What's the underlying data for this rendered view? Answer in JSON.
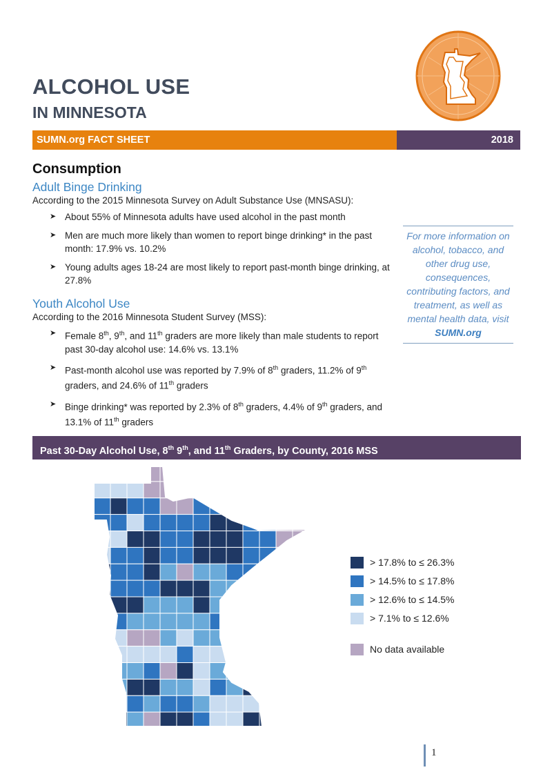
{
  "header": {
    "title_line1": "ALCOHOL USE",
    "title_line2": "IN MINNESOTA",
    "banner_left": "SUMN.org FACT SHEET",
    "banner_right": "2018"
  },
  "colors": {
    "orange": "#e7820e",
    "purple": "#574166",
    "blue_heading": "#3d87c4"
  },
  "section": {
    "heading": "Consumption",
    "adult": {
      "title": "Adult Binge Drinking",
      "intro": "According to the 2015 Minnesota Survey on Adult Substance Use (MNSASU):",
      "bullets": [
        [
          "About 55% of Minnesota adults have used alcohol in the past month"
        ],
        [
          "Men are much more likely than women to report binge drinking* in the past month: 17.9% vs. 10.2%"
        ],
        [
          "Young adults ages 18-24 are most likely to report past-month binge drinking, at 27.8%"
        ]
      ]
    },
    "youth": {
      "title": "Youth Alcohol Use",
      "intro": "According to the 2016 Minnesota Student Survey (MSS):",
      "bullets": [
        [
          "Female 8",
          "th",
          ", 9",
          "th",
          ", and 11",
          "th",
          " graders are more likely than male students to report past 30-day alcohol use: 14.6% vs. 13.1%"
        ],
        [
          "Past-month alcohol use was reported by 7.9% of 8",
          "th",
          " graders, 11.2% of 9",
          "th",
          " graders, and 24.6% of 11",
          "th",
          " graders"
        ],
        [
          "Binge drinking* was reported by 2.3% of 8",
          "th",
          " graders, 4.4% of 9",
          "th",
          " graders, and 13.1% of 11",
          "th",
          " graders"
        ]
      ]
    }
  },
  "sidebar": {
    "text": "For more information on alcohol, tobacco, and other drug use, consequences, contributing factors, and treatment, as well as mental health data, visit ",
    "link": "SUMN.org"
  },
  "map_section": {
    "title_parts": [
      "Past 30-Day Alcohol Use, 8",
      "th",
      " 9",
      "th",
      ", and 11",
      "th",
      " Graders, by County, 2016 MSS"
    ],
    "legend": [
      {
        "label": "> 17.8% to ≤ 26.3%",
        "color": "#1f3864"
      },
      {
        "label": "> 14.5% to ≤ 17.8%",
        "color": "#2f75c0"
      },
      {
        "label": "> 12.6% to ≤ 14.5%",
        "color": "#6aaad9"
      },
      {
        "label": "> 7.1% to ≤ 12.6%",
        "color": "#c9dcf0"
      },
      {
        "label": "No data available",
        "color": "#b6a6c2"
      }
    ]
  },
  "page_number": "1"
}
